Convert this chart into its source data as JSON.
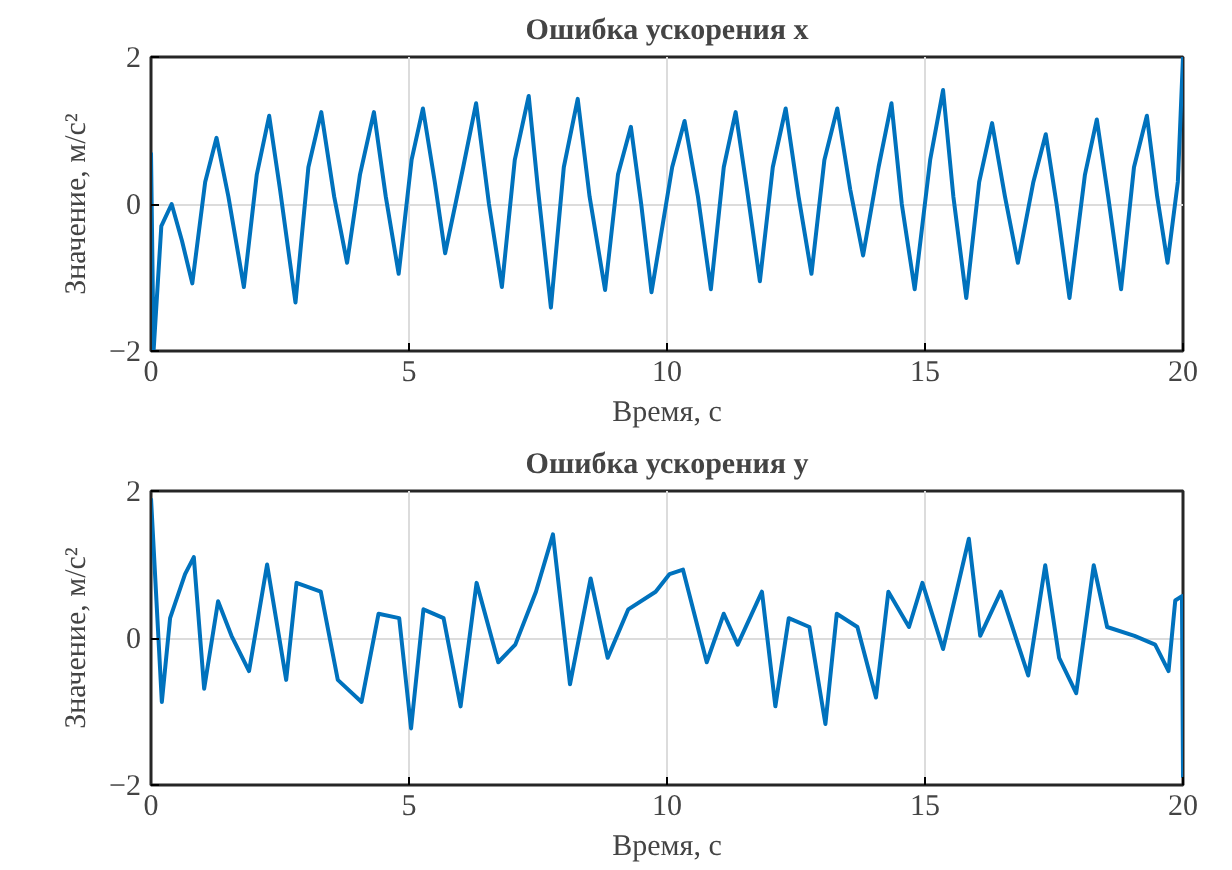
{
  "chart_data": [
    {
      "type": "line",
      "title": "Ошибка ускорения x",
      "xlabel": "Время, с",
      "ylabel": "Значение, м/с²",
      "xlim": [
        0,
        20
      ],
      "ylim": [
        -2,
        2
      ],
      "xticks": [
        0,
        5,
        10,
        15,
        20
      ],
      "yticks": [
        -2,
        0,
        2
      ],
      "grid": true,
      "x": [
        0,
        0.05,
        0.2,
        0.4,
        0.6,
        0.8,
        1.05,
        1.27,
        1.5,
        1.8,
        2.05,
        2.29,
        2.5,
        2.8,
        3.05,
        3.3,
        3.55,
        3.8,
        4.05,
        4.32,
        4.55,
        4.8,
        5.05,
        5.27,
        5.5,
        5.7,
        6.05,
        6.3,
        6.55,
        6.8,
        7.05,
        7.32,
        7.5,
        7.75,
        8.0,
        8.27,
        8.5,
        8.8,
        9.05,
        9.3,
        9.5,
        9.7,
        10.1,
        10.34,
        10.6,
        10.85,
        11.1,
        11.33,
        11.55,
        11.8,
        12.05,
        12.3,
        12.55,
        12.8,
        13.05,
        13.3,
        13.55,
        13.8,
        14.1,
        14.35,
        14.55,
        14.8,
        15.1,
        15.35,
        15.55,
        15.8,
        16.05,
        16.3,
        16.55,
        16.8,
        17.1,
        17.34,
        17.55,
        17.8,
        18.1,
        18.33,
        18.55,
        18.8,
        19.05,
        19.3,
        19.5,
        19.7,
        19.9,
        20
      ],
      "series": [
        {
          "color": "#0072bd",
          "values": [
            0.7,
            -2.0,
            -0.3,
            0.0,
            -0.5,
            -1.08,
            0.3,
            0.9,
            0.1,
            -1.13,
            0.4,
            1.2,
            0.2,
            -1.34,
            0.5,
            1.25,
            0.1,
            -0.8,
            0.4,
            1.25,
            0.1,
            -0.95,
            0.6,
            1.3,
            0.3,
            -0.67,
            0.5,
            1.37,
            0.0,
            -1.13,
            0.6,
            1.47,
            0.2,
            -1.41,
            0.5,
            1.43,
            0.1,
            -1.17,
            0.4,
            1.05,
            0.0,
            -1.2,
            0.5,
            1.13,
            0.1,
            -1.16,
            0.5,
            1.25,
            0.2,
            -1.05,
            0.5,
            1.3,
            0.1,
            -0.95,
            0.6,
            1.3,
            0.2,
            -0.7,
            0.5,
            1.37,
            0.0,
            -1.16,
            0.6,
            1.55,
            0.1,
            -1.28,
            0.3,
            1.1,
            0.1,
            -0.8,
            0.3,
            0.95,
            0.0,
            -1.28,
            0.4,
            1.15,
            0.1,
            -1.16,
            0.5,
            1.2,
            0.1,
            -0.8,
            0.3,
            2.0
          ]
        }
      ]
    },
    {
      "type": "line",
      "title": "Ошибка ускорения y",
      "xlabel": "Время, с",
      "ylabel": "Значение, м/с²",
      "xlim": [
        0,
        20
      ],
      "ylim": [
        -2,
        2
      ],
      "xticks": [
        0,
        5,
        10,
        15,
        20
      ],
      "yticks": [
        -2,
        0,
        2
      ],
      "grid": true,
      "x": [
        0,
        0.21,
        0.37,
        0.66,
        0.83,
        1.03,
        1.3,
        1.56,
        1.9,
        2.25,
        2.62,
        2.82,
        3.29,
        3.62,
        4.08,
        4.41,
        4.81,
        5.04,
        5.28,
        5.67,
        6.0,
        6.31,
        6.73,
        7.06,
        7.46,
        7.79,
        8.12,
        8.52,
        8.85,
        9.25,
        9.78,
        10.05,
        10.31,
        10.77,
        11.1,
        11.37,
        11.84,
        12.1,
        12.36,
        12.76,
        13.07,
        13.29,
        13.69,
        14.05,
        14.29,
        14.69,
        14.95,
        15.35,
        15.85,
        16.07,
        16.47,
        17.0,
        17.33,
        17.6,
        17.93,
        18.27,
        18.53,
        19.06,
        19.46,
        19.72,
        19.85,
        19.98,
        20
      ],
      "series": [
        {
          "color": "#0072bd",
          "values": [
            1.9,
            -0.87,
            0.27,
            0.87,
            1.1,
            -0.69,
            0.5,
            0.03,
            -0.45,
            1.0,
            -0.57,
            0.75,
            0.63,
            -0.57,
            -0.87,
            0.33,
            0.27,
            -1.23,
            0.39,
            0.27,
            -0.93,
            0.75,
            -0.33,
            -0.09,
            0.63,
            1.41,
            -0.63,
            0.81,
            -0.27,
            0.39,
            0.63,
            0.87,
            0.93,
            -0.33,
            0.33,
            -0.09,
            0.63,
            -0.93,
            0.27,
            0.15,
            -1.17,
            0.33,
            0.15,
            -0.81,
            0.63,
            0.15,
            0.75,
            -0.15,
            1.35,
            0.03,
            0.63,
            -0.51,
            0.99,
            -0.27,
            -0.75,
            0.99,
            0.15,
            0.03,
            -0.09,
            -0.45,
            0.51,
            0.57,
            -1.9
          ]
        }
      ]
    }
  ]
}
